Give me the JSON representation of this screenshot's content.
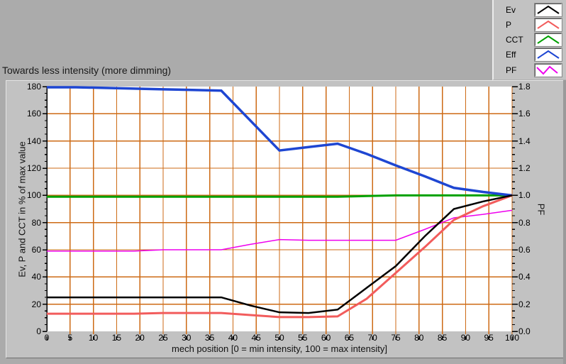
{
  "title": "Towards less intensity (more dimming)",
  "colors": {
    "background": "#ababab",
    "panel": "#c2c2c2",
    "plot_background": "#ffffff",
    "grid": "#cd6a14",
    "axis": "#000000"
  },
  "legend": {
    "glyph_names": [
      "line-sample-icon"
    ]
  },
  "chart_data": {
    "type": "line",
    "title": "Towards less intensity (more dimming)",
    "xlabel": "mech position [0 = min intensity, 100 = max intensity]",
    "ylabel_left": "Ev, P and CCT in % of max value",
    "ylabel_right": "PF",
    "xlim": [
      0,
      100
    ],
    "ylim_left": [
      0,
      180
    ],
    "ylim_right": [
      0,
      1.8
    ],
    "grid": true,
    "legend_position": "top-right",
    "x_ticks": [
      0,
      5,
      10,
      15,
      20,
      25,
      30,
      35,
      40,
      45,
      50,
      55,
      60,
      65,
      70,
      75,
      80,
      85,
      90,
      95,
      100
    ],
    "y_left_ticks": [
      0,
      20,
      40,
      60,
      80,
      100,
      120,
      140,
      160,
      180
    ],
    "y_right_ticks": [
      "0.0",
      "0.2",
      "0.4",
      "0.6",
      "0.8",
      "1.0",
      "1.2",
      "1.4",
      "1.6",
      "1.8"
    ],
    "x": [
      0,
      6.25,
      12.5,
      18.75,
      25,
      31.25,
      37.5,
      43.75,
      50,
      56.25,
      62.5,
      68.75,
      75,
      81.25,
      87.5,
      93.75,
      100
    ],
    "series": [
      {
        "name": "Ev",
        "axis": "left",
        "color": "#000000",
        "thickness": 2.5,
        "glyph": "peak",
        "values": [
          25,
          25,
          25,
          25,
          25,
          25,
          25,
          19,
          14,
          13.5,
          16,
          32,
          48,
          70,
          90,
          95.5,
          100
        ]
      },
      {
        "name": "P",
        "axis": "left",
        "color": "#f25c5c",
        "thickness": 3,
        "glyph": "peak",
        "values": [
          13,
          13,
          13,
          13,
          13.5,
          13.5,
          13.5,
          12,
          10.5,
          10.5,
          11,
          24,
          43,
          62,
          82,
          92,
          100
        ]
      },
      {
        "name": "CCT",
        "axis": "left",
        "color": "#00a000",
        "thickness": 3,
        "glyph": "peak",
        "values": [
          99,
          99,
          99,
          99,
          99,
          99,
          99,
          99,
          99,
          99,
          99,
          99.5,
          100,
          100,
          100,
          100,
          100
        ]
      },
      {
        "name": "Eff",
        "axis": "left",
        "color": "#1e46d2",
        "thickness": 3.5,
        "glyph": "peak",
        "values": [
          179.5,
          179.5,
          179,
          178.5,
          178,
          177.5,
          177,
          155,
          133,
          135.5,
          138,
          130.5,
          122,
          114,
          105.5,
          102.5,
          100
        ]
      },
      {
        "name": "PF",
        "axis": "right",
        "color": "#ee00ee",
        "thickness": 1.5,
        "glyph": "zigzag",
        "values": [
          0.59,
          0.59,
          0.59,
          0.59,
          0.6,
          0.6,
          0.6,
          0.64,
          0.675,
          0.67,
          0.67,
          0.67,
          0.67,
          0.75,
          0.835,
          0.86,
          0.89
        ]
      }
    ]
  }
}
